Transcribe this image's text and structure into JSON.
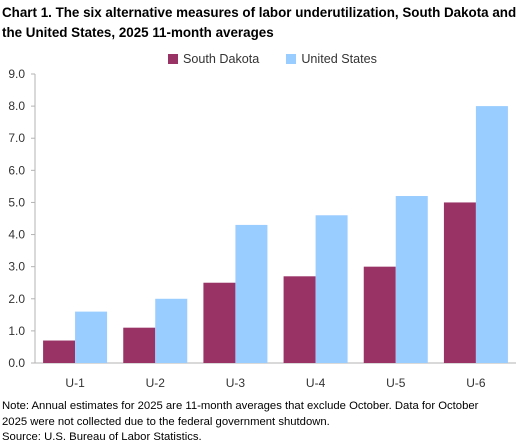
{
  "title": "Chart 1. The six alternative measures of labor underutilization, South Dakota and the United States, 2025 11-month averages",
  "notes": [
    "Note:  Annual estimates for 2025 are 11-month averages that exclude October. Data for October",
    "2025 were  not collected due to the  federal government  shutdown.",
    "Source: U.S. Bureau of Labor Statistics."
  ],
  "colors": {
    "south_dakota": "#993366",
    "united_states": "#99ccff",
    "axis": "#b3b3b3"
  },
  "chart_data": {
    "type": "bar",
    "title": "Chart 1. The six alternative measures of labor underutilization, South Dakota and the United States, 2025 11-month averages",
    "categories": [
      "U-1",
      "U-2",
      "U-3",
      "U-4",
      "U-5",
      "U-6"
    ],
    "series": [
      {
        "name": "South Dakota",
        "values": [
          0.7,
          1.1,
          2.5,
          2.7,
          3.0,
          5.0
        ]
      },
      {
        "name": "United States",
        "values": [
          1.6,
          2.0,
          4.3,
          4.6,
          5.2,
          8.0
        ]
      }
    ],
    "ylim": [
      0,
      9
    ],
    "yticks": [
      "0.0",
      "1.0",
      "2.0",
      "3.0",
      "4.0",
      "5.0",
      "6.0",
      "7.0",
      "8.0",
      "9.0"
    ],
    "grid": false,
    "legend": "top"
  }
}
